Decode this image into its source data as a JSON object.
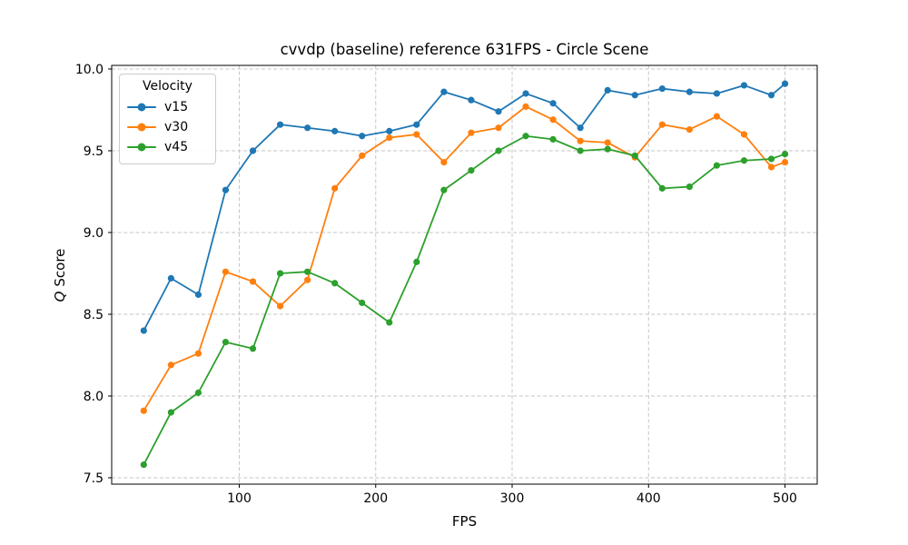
{
  "figure": {
    "ylabel_italic": "Q",
    "ylabel_rest": "Score"
  },
  "legend": {
    "title": "Velocity",
    "entries": [
      {
        "label": "v15",
        "color": "#1f77b4"
      },
      {
        "label": "v30",
        "color": "#ff7f0e"
      },
      {
        "label": "v45",
        "color": "#2ca02c"
      }
    ]
  },
  "colors": {
    "background": "#ffffff",
    "grid": "#c6c6c6",
    "spine": "#000000",
    "text": "#000000",
    "series_blue": "#1f77b4",
    "series_orange": "#ff7f0e",
    "series_green": "#2ca02c"
  },
  "chart_data": {
    "type": "line",
    "title": "cvvdp (baseline) reference 631FPS - Circle Scene",
    "xlabel": "FPS",
    "ylabel": "Q Score",
    "x": [
      30,
      50,
      70,
      90,
      110,
      130,
      150,
      170,
      190,
      210,
      230,
      250,
      270,
      290,
      310,
      330,
      350,
      370,
      390,
      410,
      430,
      450,
      470,
      490,
      500
    ],
    "series": [
      {
        "name": "v15",
        "color": "#1f77b4",
        "values": [
          8.4,
          8.72,
          8.62,
          9.26,
          9.5,
          9.66,
          9.64,
          9.62,
          9.59,
          9.62,
          9.66,
          9.86,
          9.81,
          9.74,
          9.85,
          9.79,
          9.64,
          9.87,
          9.84,
          9.88,
          9.86,
          9.85,
          9.9,
          9.84,
          9.91
        ]
      },
      {
        "name": "v30",
        "color": "#ff7f0e",
        "values": [
          7.91,
          8.19,
          8.26,
          8.76,
          8.7,
          8.55,
          8.71,
          9.27,
          9.47,
          9.58,
          9.6,
          9.43,
          9.61,
          9.64,
          9.77,
          9.69,
          9.56,
          9.55,
          9.46,
          9.66,
          9.63,
          9.71,
          9.6,
          9.4,
          9.43
        ]
      },
      {
        "name": "v45",
        "color": "#2ca02c",
        "values": [
          7.58,
          7.9,
          8.02,
          8.33,
          8.29,
          8.75,
          8.76,
          8.69,
          8.57,
          8.45,
          8.82,
          9.26,
          9.38,
          9.5,
          9.59,
          9.57,
          9.5,
          9.51,
          9.47,
          9.27,
          9.28,
          9.41,
          9.44,
          9.45,
          9.48
        ]
      }
    ],
    "xticks": [
      {
        "value": 100,
        "label": "100"
      },
      {
        "value": 200,
        "label": "200"
      },
      {
        "value": 300,
        "label": "300"
      },
      {
        "value": 400,
        "label": "400"
      },
      {
        "value": 500,
        "label": "500"
      }
    ],
    "yticks": [
      {
        "value": 7.5,
        "label": "7.5"
      },
      {
        "value": 8.0,
        "label": "8.0"
      },
      {
        "value": 8.5,
        "label": "8.5"
      },
      {
        "value": 9.0,
        "label": "9.0"
      },
      {
        "value": 9.5,
        "label": "9.5"
      },
      {
        "value": 10.0,
        "label": "10.0"
      }
    ],
    "xlim": [
      6.5,
      523.6
    ],
    "ylim": [
      7.461,
      10.022
    ],
    "grid": true,
    "grid_style": "dashed",
    "legend_title": "Velocity",
    "legend_position": "upper left",
    "marker": "o"
  }
}
